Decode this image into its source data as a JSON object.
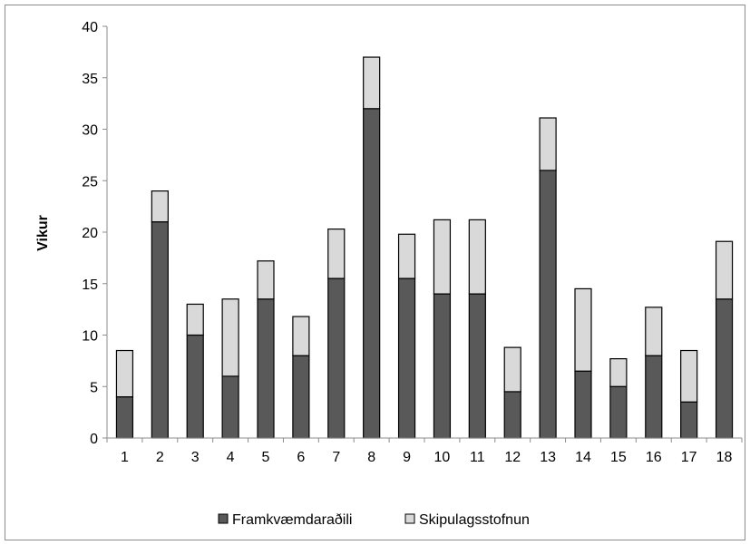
{
  "chart_data": {
    "type": "bar",
    "stacked": true,
    "title": "",
    "xlabel": "",
    "ylabel": "Vikur",
    "ylim": [
      0,
      40
    ],
    "yticks": [
      0,
      5,
      10,
      15,
      20,
      25,
      30,
      35,
      40
    ],
    "grid": false,
    "legend_position": "bottom",
    "categories": [
      "1",
      "2",
      "3",
      "4",
      "5",
      "6",
      "7",
      "8",
      "9",
      "10",
      "11",
      "12",
      "13",
      "14",
      "15",
      "16",
      "17",
      "18"
    ],
    "series": [
      {
        "name": "Framkvæmdaraðili",
        "color": "#595959",
        "values": [
          4,
          21,
          10,
          6,
          13.5,
          8,
          15.5,
          32,
          15.5,
          14,
          14,
          4.5,
          26,
          6.5,
          5,
          8,
          3.5,
          13.5
        ]
      },
      {
        "name": "Skipulagsstofnun",
        "color": "#d9d9d9",
        "values": [
          4.5,
          3,
          3,
          7.5,
          3.7,
          3.8,
          4.8,
          5,
          4.3,
          7.2,
          7.2,
          4.3,
          5.1,
          8,
          2.7,
          4.7,
          5,
          5.6
        ]
      }
    ]
  }
}
